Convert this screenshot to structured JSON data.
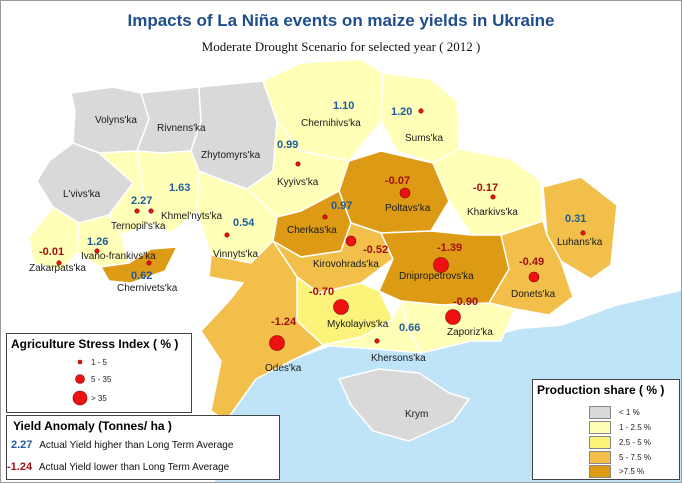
{
  "title": "Impacts of La Niña events on maize yields in Ukraine",
  "subtitle": "Moderate Drought Scenario for selected year ( 2012 )",
  "regions": [
    {
      "name": "Volyns'ka",
      "value": null,
      "share": "lt1"
    },
    {
      "name": "Rivnens'ka",
      "value": null,
      "share": "lt1"
    },
    {
      "name": "L'vivs'ka",
      "value": null,
      "share": "lt1"
    },
    {
      "name": "Zhytomyrs'ka",
      "value": null,
      "share": "lt1"
    },
    {
      "name": "Chernihivs'ka",
      "value": "1.10",
      "share": "1to2_5"
    },
    {
      "name": "Sums'ka",
      "value": "1.20",
      "share": "1to2_5"
    },
    {
      "name": "Kyyivs'ka",
      "value": "0.99",
      "share": "1to2_5"
    },
    {
      "name": "Kharkivs'ka",
      "value": "-0.17",
      "share": "1to2_5"
    },
    {
      "name": "Luhans'ka",
      "value": "0.31",
      "share": "5to7_5"
    },
    {
      "name": "Poltavs'ka",
      "value": "-0.07",
      "share": "gt7_5"
    },
    {
      "name": "Cherkas'ka",
      "value": "0.97",
      "share": "gt7_5"
    },
    {
      "name": "Kirovohrads'ka",
      "value": "-0.52",
      "share": "5to7_5"
    },
    {
      "name": "Dnipropetrovs'ka",
      "value": "-1.39",
      "share": "gt7_5"
    },
    {
      "name": "Donets'ka",
      "value": "-0.49",
      "share": "5to7_5"
    },
    {
      "name": "Zaporiz'ka",
      "value": "-0.90",
      "share": "1to2_5"
    },
    {
      "name": "Khersons'ka",
      "value": "0.66",
      "share": "1to2_5"
    },
    {
      "name": "Mykolayivs'ka",
      "value": "-0.70",
      "share": "2_5to5"
    },
    {
      "name": "Odes'ka",
      "value": "-1.24",
      "share": "5to7_5"
    },
    {
      "name": "Vinnyts'ka",
      "value": "0.54",
      "share": "1to2_5"
    },
    {
      "name": "Khmel'nyts'ka",
      "value": "1.63",
      "share": "1to2_5"
    },
    {
      "name": "Ternopil's'ka",
      "value": "2.27",
      "share": "1to2_5"
    },
    {
      "name": "Ivano-frankivs'ka",
      "value": "1.26",
      "share": "1to2_5"
    },
    {
      "name": "Zakarpats'ka",
      "value": "-0.01",
      "share": "1to2_5"
    },
    {
      "name": "Chernivets'ka",
      "value": "0.62",
      "share": "gt7_5"
    },
    {
      "name": "Krym",
      "value": null,
      "share": "lt1"
    }
  ],
  "stress_legend": {
    "title": "Agriculture Stress Index ( % )",
    "items": [
      "1 - 5",
      "5 - 35",
      "> 35"
    ]
  },
  "yield_legend": {
    "title": "Yield Anomaly (Tonnes/ ha )",
    "pos_value": "2.27",
    "pos_text": "Actual Yield higher than Long Term Average",
    "neg_value": "-1.24",
    "neg_text": "Actual Yield lower than Long Term Average"
  },
  "share_legend": {
    "title": "Production share ( % )",
    "items": [
      {
        "label": "< 1 %",
        "color": "#d9d9d9"
      },
      {
        "label": "1 - 2.5 %",
        "color": "#ffffb8"
      },
      {
        "label": "2.5 - 5 %",
        "color": "#fcf37a"
      },
      {
        "label": "5 - 7.5 %",
        "color": "#f2c04a"
      },
      {
        "label": ">7.5 %",
        "color": "#dd9a14"
      }
    ]
  },
  "colors": {
    "sea": "#bfe4f7",
    "neighbor": "#ffffff",
    "border": "#ffffff",
    "dot": "#ee1111"
  }
}
